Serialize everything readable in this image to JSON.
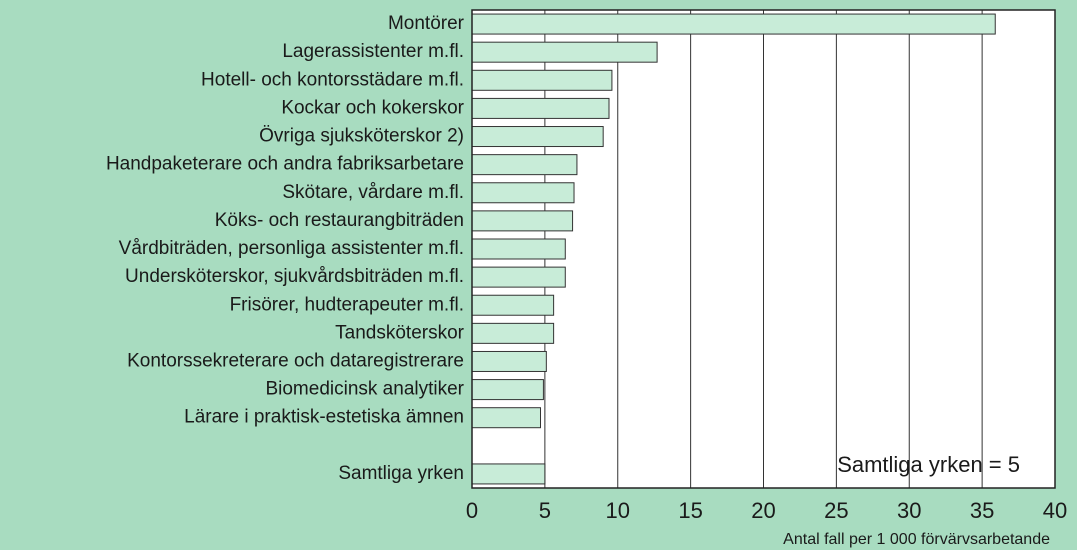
{
  "chart_data": {
    "type": "hbar",
    "categories": [
      "Montörer",
      "Lagerassistenter m.fl.",
      "Hotell- och kontorsstädare m.fl.",
      "Kockar och kokerskor",
      "Övriga sjuksköterskor 2)",
      "Handpaketerare och andra fabriksarbetare",
      "Skötare, vårdare m.fl.",
      "Köks- och restaurangbiträden",
      "Vårdbiträden, personliga assistenter m.fl.",
      "Undersköterskor, sjukvårdsbiträden m.fl.",
      "Frisörer, hudterapeuter m.fl.",
      "Tandsköterskor",
      "Kontorssekreterare och dataregistrerare",
      "Biomedicinsk analytiker",
      "Lärare i praktisk-estetiska ämnen",
      null,
      "Samtliga yrken"
    ],
    "values": [
      35.9,
      12.7,
      9.6,
      9.4,
      9.0,
      7.2,
      7.0,
      6.9,
      6.4,
      6.4,
      5.6,
      5.6,
      5.1,
      4.9,
      4.7,
      null,
      5
    ],
    "color": "#c8ecd8",
    "xlim": [
      0,
      40
    ],
    "xticks": [
      0,
      5,
      10,
      15,
      20,
      25,
      30,
      35,
      40
    ],
    "grid": true,
    "annotation": "Samtliga yrken = 5",
    "x_label": "Antal fall per 1 000 förvärvsarbetande"
  }
}
